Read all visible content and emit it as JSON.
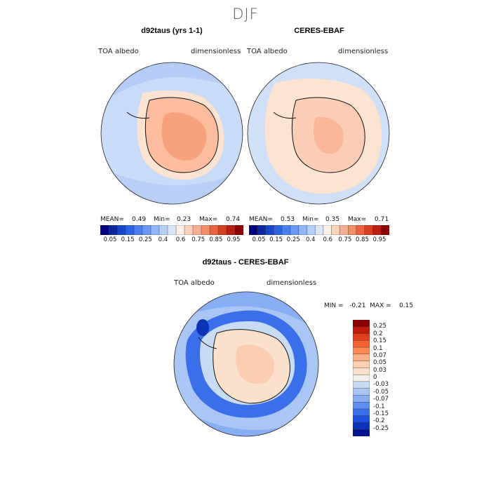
{
  "figure": {
    "season": "DJF"
  },
  "panels": [
    {
      "title": "d92taus (yrs 1-1)",
      "variable": "TOA albedo",
      "units": "dimensionless",
      "mean_label": "MEAN=",
      "mean": "0.49",
      "min_label": "Min=",
      "min": "0.23",
      "max_label": "Max=",
      "max": "0.74"
    },
    {
      "title": "CERES-EBAF",
      "variable": "TOA albedo",
      "units": "dimensionless",
      "mean_label": "MEAN=",
      "mean": "0.53",
      "min_label": "Min=",
      "min": "0.35",
      "max_label": "Max=",
      "max": "0.71"
    }
  ],
  "colorbar_top": {
    "colors": [
      "#000080",
      "#0b27a0",
      "#1746cd",
      "#2e62e6",
      "#4a7ff2",
      "#6a98f6",
      "#8fb5fa",
      "#b5cff9",
      "#d9e6f8",
      "#fdf0e6",
      "#fcd2bb",
      "#f7b192",
      "#f28d68",
      "#ea6242",
      "#d83e23",
      "#b81f0e",
      "#8b0000"
    ],
    "tick_labels": [
      "0.05",
      "0.15",
      "0.25",
      "0.4",
      "0.6",
      "0.75",
      "0.85",
      "0.95"
    ]
  },
  "diff_panel": {
    "title": "d92taus - CERES-EBAF",
    "variable": "TOA albedo",
    "units": "dimensionless",
    "stats": "MIN =   -0.21  MAX =    0.15"
  },
  "colorbar_diff": {
    "colors": [
      "#8b0000",
      "#c01b0d",
      "#e23d1f",
      "#f4622f",
      "#fb8a55",
      "#fcb088",
      "#fccdaf",
      "#fde1cd",
      "#f4f1ea",
      "#c8dbf5",
      "#a9c6f4",
      "#87aef2",
      "#5f8ff0",
      "#3b6fe9",
      "#1c4fde",
      "#0d33b8",
      "#00148f"
    ],
    "tick_labels": [
      "0.25",
      "0.2",
      "0.15",
      "0.1",
      "0.07",
      "0.05",
      "0.03",
      "0",
      "-0.03",
      "-0.05",
      "-0.07",
      "-0.1",
      "-0.15",
      "-0.2",
      "-0.25"
    ]
  }
}
